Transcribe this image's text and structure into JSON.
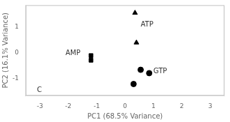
{
  "chart_data": {
    "type": "scatter",
    "xlabel": "PC1 (68.5% Variance)",
    "ylabel": "PC2 (16.1% Variance)",
    "series": [
      {
        "x": [
          0.35,
          0.4
        ],
        "values": [
          1.55,
          0.4
        ],
        "color": "black",
        "marker": "triangle"
      },
      {
        "x": [
          -1.2,
          -1.2
        ],
        "values": [
          -0.1,
          -0.28
        ],
        "color": "black",
        "marker": "square"
      },
      {
        "x": [
          0.55,
          0.85,
          0.3
        ],
        "values": [
          -0.65,
          -0.78,
          -1.2
        ],
        "color": "black",
        "marker": "circle"
      }
    ],
    "annotations": [
      {
        "text": "ATP",
        "x": 0.55,
        "y": 1.1
      },
      {
        "text": "AMP",
        "x": -2.1,
        "y": 0.0
      },
      {
        "text": "GTP",
        "x": 1.0,
        "y": -0.72
      },
      {
        "text": "C",
        "x": -3.1,
        "y": -1.45
      }
    ],
    "xlim": [
      -3.5,
      3.5
    ],
    "ylim": [
      -1.65,
      1.85
    ],
    "xticks": [
      -3,
      -2,
      -1,
      0,
      1,
      2,
      3
    ],
    "yticks": [
      -1,
      0,
      1
    ],
    "grid": false
  }
}
